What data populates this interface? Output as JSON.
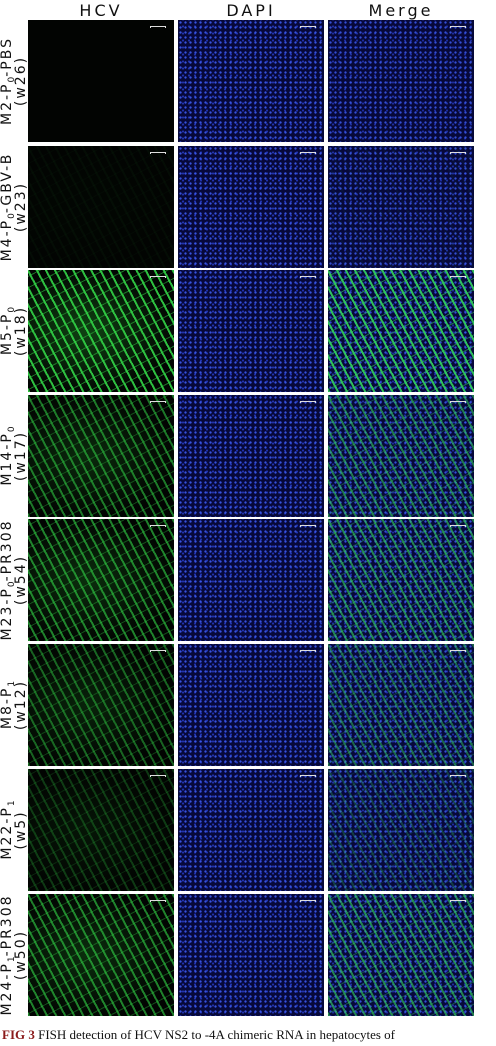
{
  "figure": {
    "columns": [
      "HCV",
      "DAPI",
      "Merge"
    ],
    "rows": [
      {
        "label": [
          {
            "text": "M2-P"
          },
          {
            "sub": "0"
          },
          {
            "text": "-PBS"
          }
        ],
        "week": "(w26)"
      },
      {
        "label": [
          {
            "text": "M4-P"
          },
          {
            "sub": "0"
          },
          {
            "text": "-GBV-B"
          }
        ],
        "week": "(w23)"
      },
      {
        "label": [
          {
            "text": "M5-P"
          },
          {
            "sub": "0"
          }
        ],
        "week": "(w18)"
      },
      {
        "label": [
          {
            "text": "M14-P"
          },
          {
            "sub": "0"
          }
        ],
        "week": "(w17)"
      },
      {
        "label": [
          {
            "text": "M23-P"
          },
          {
            "sub": "0"
          },
          {
            "text": "-PR308"
          }
        ],
        "week": "(w54)"
      },
      {
        "label": [
          {
            "text": "M8-P"
          },
          {
            "sub": "1"
          }
        ],
        "week": "(w12)"
      },
      {
        "label": [
          {
            "text": "M22-P"
          },
          {
            "sub": "1"
          }
        ],
        "week": "(w5)"
      },
      {
        "label": [
          {
            "text": "M24-P"
          },
          {
            "sub": "1"
          },
          {
            "text": "-PR308"
          }
        ],
        "week": "(w50)"
      }
    ],
    "caption": {
      "label": "FIG 3",
      "text": "FISH detection of HCV NS2 to -4A chimeric RNA in hepatocytes of"
    }
  }
}
